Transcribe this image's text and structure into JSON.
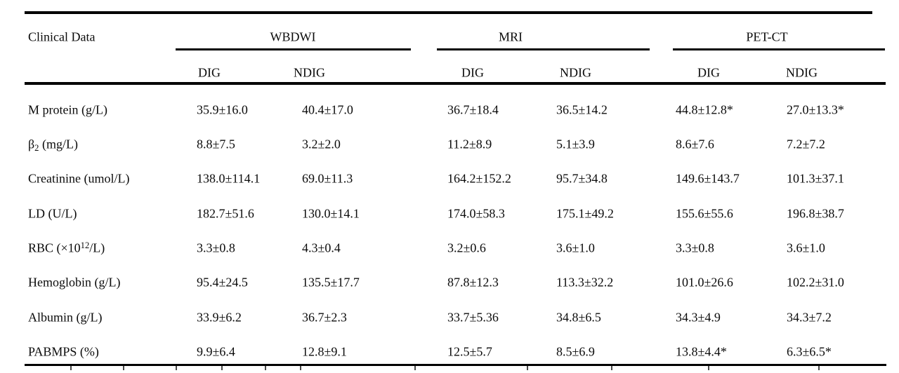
{
  "table": {
    "corner_label": "Clinical Data",
    "column_groups": [
      {
        "label": "WBDWI",
        "subcolumns": [
          "DIG",
          "NDIG"
        ]
      },
      {
        "label": "MRI",
        "subcolumns": [
          "DIG",
          "NDIG"
        ]
      },
      {
        "label": "PET-CT",
        "subcolumns": [
          "DIG",
          "NDIG"
        ]
      }
    ],
    "rows": [
      {
        "label_parts": [
          {
            "t": "text",
            "v": "M protein (g/L)"
          }
        ],
        "values": [
          "35.9±16.0",
          "40.4±17.0",
          "36.7±18.4",
          "36.5±14.2",
          "44.8±12.8*",
          "27.0±13.3*"
        ]
      },
      {
        "label_parts": [
          {
            "t": "text",
            "v": "β"
          },
          {
            "t": "sub",
            "v": "2"
          },
          {
            "t": "text",
            "v": " (mg/L)"
          }
        ],
        "values": [
          "8.8±7.5",
          "3.2±2.0",
          "11.2±8.9",
          "5.1±3.9",
          "8.6±7.6",
          "7.2±7.2"
        ]
      },
      {
        "label_parts": [
          {
            "t": "text",
            "v": "Creatinine (umol/L)"
          }
        ],
        "values": [
          "138.0±114.1",
          "69.0±11.3",
          "164.2±152.2",
          "95.7±34.8",
          "149.6±143.7",
          "101.3±37.1"
        ]
      },
      {
        "label_parts": [
          {
            "t": "text",
            "v": "LD (U/L)"
          }
        ],
        "values": [
          "182.7±51.6",
          "130.0±14.1",
          "174.0±58.3",
          "175.1±49.2",
          "155.6±55.6",
          "196.8±38.7"
        ]
      },
      {
        "label_parts": [
          {
            "t": "text",
            "v": "RBC (×10"
          },
          {
            "t": "sup",
            "v": "12"
          },
          {
            "t": "text",
            "v": "/L)"
          }
        ],
        "values": [
          "3.3±0.8",
          "4.3±0.4",
          "3.2±0.6",
          "3.6±1.0",
          "3.3±0.8",
          "3.6±1.0"
        ]
      },
      {
        "label_parts": [
          {
            "t": "text",
            "v": "Hemoglobin (g/L)"
          }
        ],
        "values": [
          "95.4±24.5",
          "135.5±17.7",
          "87.8±12.3",
          "113.3±32.2",
          "101.0±26.6",
          "102.2±31.0"
        ]
      },
      {
        "label_parts": [
          {
            "t": "text",
            "v": "Albumin (g/L)"
          }
        ],
        "values": [
          "33.9±6.2",
          "36.7±2.3",
          "33.7±5.36",
          "34.8±6.5",
          "34.3±4.9",
          "34.3±7.2"
        ]
      },
      {
        "label_parts": [
          {
            "t": "text",
            "v": "PABMPS (%)"
          }
        ],
        "values": [
          "9.9±6.4",
          "12.8±9.1",
          "12.5±5.7",
          "8.5±6.9",
          "13.8±4.4*",
          "6.3±6.5*"
        ]
      }
    ],
    "colors": {
      "text": "#0b0b0b",
      "rule": "#000000",
      "background": "#ffffff"
    }
  }
}
